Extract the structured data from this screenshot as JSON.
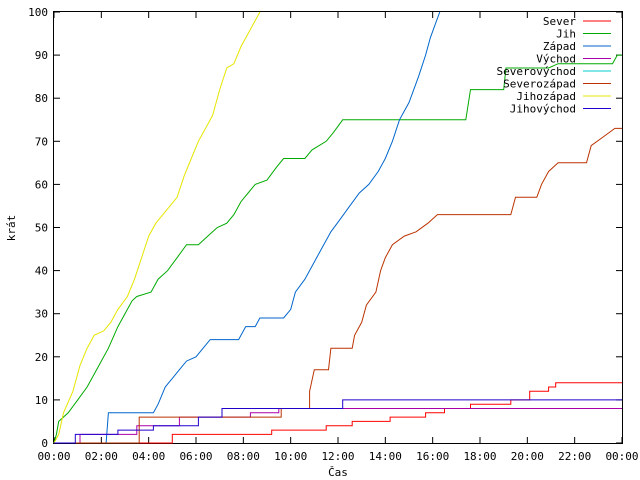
{
  "chart_data": {
    "type": "line",
    "title": "",
    "xlabel": "Čas",
    "ylabel": "krát",
    "xlim": [
      0,
      24
    ],
    "ylim": [
      0,
      100
    ],
    "grid": false,
    "legend_position": "top-right",
    "x_tick_labels": [
      "00:00",
      "02:00",
      "04:00",
      "06:00",
      "08:00",
      "10:00",
      "12:00",
      "14:00",
      "16:00",
      "18:00",
      "20:00",
      "22:00",
      "00:00"
    ],
    "y_ticks": [
      0,
      10,
      20,
      30,
      40,
      50,
      60,
      70,
      80,
      90,
      100
    ],
    "series": [
      {
        "name": "Sever",
        "color": "#ff0000",
        "points": [
          [
            0,
            0
          ],
          [
            5.0,
            0
          ],
          [
            5.0,
            2
          ],
          [
            9.2,
            2
          ],
          [
            9.2,
            3
          ],
          [
            11.5,
            3
          ],
          [
            11.5,
            4
          ],
          [
            12.6,
            4
          ],
          [
            12.6,
            5
          ],
          [
            14.2,
            5
          ],
          [
            14.2,
            6
          ],
          [
            15.7,
            6
          ],
          [
            15.7,
            7
          ],
          [
            16.5,
            7
          ],
          [
            16.5,
            8
          ],
          [
            17.6,
            8
          ],
          [
            17.6,
            9
          ],
          [
            19.3,
            9
          ],
          [
            19.3,
            10
          ],
          [
            20.1,
            10
          ],
          [
            20.1,
            12
          ],
          [
            20.9,
            12
          ],
          [
            20.9,
            13
          ],
          [
            21.2,
            13
          ],
          [
            21.2,
            14
          ],
          [
            24,
            14
          ]
        ]
      },
      {
        "name": "Jih",
        "color": "#00aa00",
        "points": [
          [
            0,
            0
          ],
          [
            0.1,
            2
          ],
          [
            0.2,
            5
          ],
          [
            0.6,
            7
          ],
          [
            1.0,
            10
          ],
          [
            1.4,
            13
          ],
          [
            1.8,
            17
          ],
          [
            2.3,
            22
          ],
          [
            2.7,
            27
          ],
          [
            3.0,
            30
          ],
          [
            3.3,
            33
          ],
          [
            3.5,
            34
          ],
          [
            4.1,
            35
          ],
          [
            4.4,
            38
          ],
          [
            4.8,
            40
          ],
          [
            5.2,
            43
          ],
          [
            5.6,
            46
          ],
          [
            6.1,
            46
          ],
          [
            6.5,
            48
          ],
          [
            6.9,
            50
          ],
          [
            7.3,
            51
          ],
          [
            7.6,
            53
          ],
          [
            7.9,
            56
          ],
          [
            8.2,
            58
          ],
          [
            8.5,
            60
          ],
          [
            9.0,
            61
          ],
          [
            9.4,
            64
          ],
          [
            9.7,
            66
          ],
          [
            10.6,
            66
          ],
          [
            10.9,
            68
          ],
          [
            11.5,
            70
          ],
          [
            11.8,
            72
          ],
          [
            12.2,
            75
          ],
          [
            14.5,
            75
          ],
          [
            17.4,
            75
          ],
          [
            17.6,
            82
          ],
          [
            19.0,
            82
          ],
          [
            19.1,
            87
          ],
          [
            20.9,
            87
          ],
          [
            21.3,
            88
          ],
          [
            23.6,
            88
          ],
          [
            23.8,
            90
          ],
          [
            24,
            90
          ]
        ]
      },
      {
        "name": "Západ",
        "color": "#0066cc",
        "points": [
          [
            0,
            0
          ],
          [
            2.2,
            0
          ],
          [
            2.3,
            7
          ],
          [
            4.2,
            7
          ],
          [
            4.4,
            9
          ],
          [
            4.7,
            13
          ],
          [
            5.0,
            15
          ],
          [
            5.3,
            17
          ],
          [
            5.6,
            19
          ],
          [
            6.0,
            20
          ],
          [
            6.3,
            22
          ],
          [
            6.6,
            24
          ],
          [
            7.8,
            24
          ],
          [
            8.1,
            27
          ],
          [
            8.5,
            27
          ],
          [
            8.7,
            29
          ],
          [
            9.7,
            29
          ],
          [
            10.0,
            31
          ],
          [
            10.2,
            35
          ],
          [
            10.6,
            38
          ],
          [
            11.0,
            42
          ],
          [
            11.3,
            45
          ],
          [
            11.7,
            49
          ],
          [
            12.1,
            52
          ],
          [
            12.5,
            55
          ],
          [
            12.9,
            58
          ],
          [
            13.3,
            60
          ],
          [
            13.7,
            63
          ],
          [
            14.0,
            66
          ],
          [
            14.3,
            70
          ],
          [
            14.6,
            75
          ],
          [
            15.0,
            79
          ],
          [
            15.4,
            85
          ],
          [
            15.7,
            90
          ],
          [
            15.9,
            94
          ],
          [
            16.1,
            97
          ],
          [
            16.3,
            100
          ]
        ]
      },
      {
        "name": "Východ",
        "color": "#aa00aa",
        "points": [
          [
            0,
            0
          ],
          [
            1.1,
            0
          ],
          [
            1.1,
            2
          ],
          [
            3.5,
            2
          ],
          [
            3.5,
            4
          ],
          [
            5.3,
            4
          ],
          [
            5.3,
            6
          ],
          [
            8.3,
            6
          ],
          [
            8.3,
            7
          ],
          [
            9.5,
            7
          ],
          [
            9.5,
            8
          ],
          [
            24,
            8
          ]
        ]
      },
      {
        "name": "Severovýchod",
        "color": "#00cccc",
        "points": []
      },
      {
        "name": "Severozápad",
        "color": "#bb3300",
        "points": [
          [
            0,
            0
          ],
          [
            3.6,
            0
          ],
          [
            3.6,
            6
          ],
          [
            9.6,
            6
          ],
          [
            9.6,
            8
          ],
          [
            10.8,
            8
          ],
          [
            10.8,
            12
          ],
          [
            11.0,
            17
          ],
          [
            11.6,
            17
          ],
          [
            11.7,
            22
          ],
          [
            12.6,
            22
          ],
          [
            12.7,
            25
          ],
          [
            13.0,
            28
          ],
          [
            13.2,
            32
          ],
          [
            13.6,
            35
          ],
          [
            13.8,
            40
          ],
          [
            14.0,
            43
          ],
          [
            14.3,
            46
          ],
          [
            14.8,
            48
          ],
          [
            15.3,
            49
          ],
          [
            15.8,
            51
          ],
          [
            16.2,
            53
          ],
          [
            17.5,
            53
          ],
          [
            19.3,
            53
          ],
          [
            19.5,
            57
          ],
          [
            20.4,
            57
          ],
          [
            20.6,
            60
          ],
          [
            20.9,
            63
          ],
          [
            21.3,
            65
          ],
          [
            22.5,
            65
          ],
          [
            22.7,
            69
          ],
          [
            23.2,
            71
          ],
          [
            23.7,
            73
          ],
          [
            24,
            73
          ]
        ]
      },
      {
        "name": "Jihozápad",
        "color": "#e6e600",
        "points": [
          [
            0,
            0
          ],
          [
            0.2,
            2
          ],
          [
            0.4,
            7
          ],
          [
            0.8,
            12
          ],
          [
            1.1,
            18
          ],
          [
            1.4,
            22
          ],
          [
            1.7,
            25
          ],
          [
            2.1,
            26
          ],
          [
            2.4,
            28
          ],
          [
            2.7,
            31
          ],
          [
            3.1,
            34
          ],
          [
            3.4,
            38
          ],
          [
            3.7,
            43
          ],
          [
            4.0,
            48
          ],
          [
            4.3,
            51
          ],
          [
            4.6,
            53
          ],
          [
            4.9,
            55
          ],
          [
            5.2,
            57
          ],
          [
            5.5,
            62
          ],
          [
            5.8,
            66
          ],
          [
            6.1,
            70
          ],
          [
            6.4,
            73
          ],
          [
            6.7,
            76
          ],
          [
            7.0,
            82
          ],
          [
            7.3,
            87
          ],
          [
            7.6,
            88
          ],
          [
            7.9,
            92
          ],
          [
            8.2,
            95
          ],
          [
            8.5,
            98
          ],
          [
            8.7,
            100
          ]
        ]
      },
      {
        "name": "Jihovýchod",
        "color": "#2200cc",
        "points": [
          [
            0,
            0
          ],
          [
            0.9,
            0
          ],
          [
            0.9,
            2
          ],
          [
            2.7,
            2
          ],
          [
            2.7,
            3
          ],
          [
            4.2,
            3
          ],
          [
            4.2,
            4
          ],
          [
            6.1,
            4
          ],
          [
            6.1,
            6
          ],
          [
            7.1,
            6
          ],
          [
            7.1,
            8
          ],
          [
            12.2,
            8
          ],
          [
            12.2,
            10
          ],
          [
            24,
            10
          ]
        ]
      }
    ]
  }
}
